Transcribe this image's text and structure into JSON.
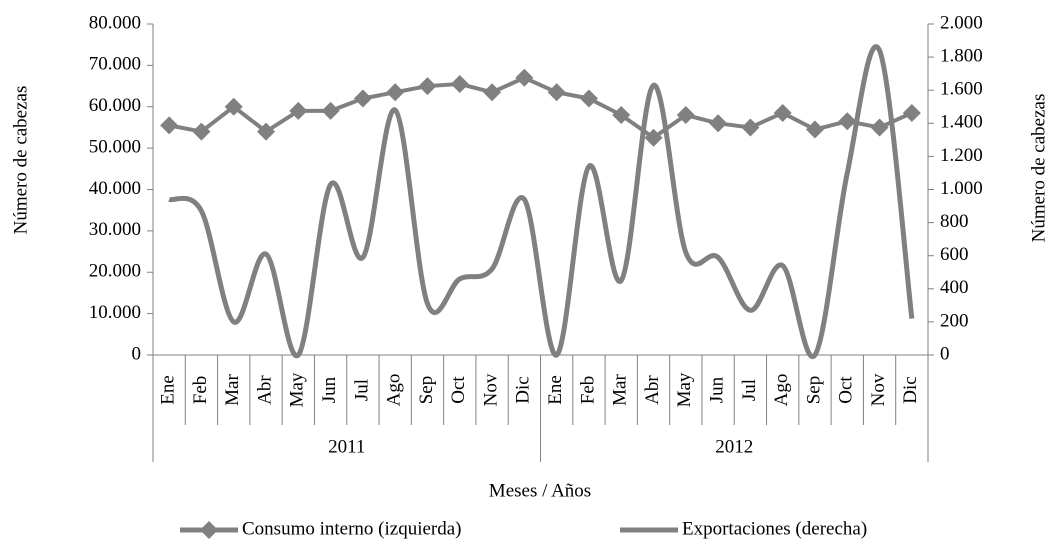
{
  "chart_data": {
    "type": "line",
    "x_label": "Meses / Años",
    "y_label": "Número de cabezas",
    "y2_label": "Número de cabezas",
    "categories": [
      "Ene",
      "Feb",
      "Mar",
      "Abr",
      "May",
      "Jun",
      "Jul",
      "Ago",
      "Sep",
      "Oct",
      "Nov",
      "Dic",
      "Ene",
      "Feb",
      "Mar",
      "Abr",
      "May",
      "Jun",
      "Jul",
      "Ago",
      "Sep",
      "Oct",
      "Nov",
      "Dic"
    ],
    "groups": [
      {
        "label": "2011",
        "size": 12
      },
      {
        "label": "2012",
        "size": 12
      }
    ],
    "series": [
      {
        "name": "Consumo interno (izquierda)",
        "color": "#808080",
        "marker": "diamond",
        "axis": "y",
        "values": [
          55500,
          54000,
          60000,
          54000,
          59000,
          59000,
          62000,
          63500,
          65000,
          65500,
          63500,
          67000,
          63500,
          62000,
          58000,
          52500,
          58000,
          56000,
          55000,
          58500,
          54500,
          56500,
          55000,
          58500
        ]
      },
      {
        "name": "Exportaciones (derecha)",
        "color": "#808080",
        "smooth": true,
        "axis": "y2",
        "values": [
          940,
          870,
          200,
          610,
          0,
          1030,
          590,
          1480,
          310,
          460,
          520,
          940,
          0,
          1140,
          450,
          1630,
          620,
          590,
          270,
          540,
          0,
          1100,
          1840,
          220
        ]
      }
    ],
    "ylim": [
      0,
      80000
    ],
    "yticks": [
      0,
      {
        "value": 10000,
        "label": "10.000"
      },
      {
        "value": 20000,
        "label": "20.000"
      },
      {
        "value": 30000,
        "label": "30.000"
      },
      {
        "value": 40000,
        "label": "40.000"
      },
      {
        "value": 50000,
        "label": "50.000"
      },
      {
        "value": 60000,
        "label": "60.000"
      },
      {
        "value": 70000,
        "label": "70.000"
      },
      {
        "value": 80000,
        "label": "80.000"
      }
    ],
    "y2lim": [
      0,
      2000
    ],
    "y2ticks": [
      0,
      200,
      400,
      600,
      800,
      {
        "value": 1000,
        "label": "1.000"
      },
      {
        "value": 1200,
        "label": "1.200"
      },
      {
        "value": 1400,
        "label": "1.400"
      },
      {
        "value": 1600,
        "label": "1.600"
      },
      {
        "value": 1800,
        "label": "1.800"
      },
      {
        "value": 2000,
        "label": "2.000"
      }
    ],
    "legend": "bottom"
  }
}
